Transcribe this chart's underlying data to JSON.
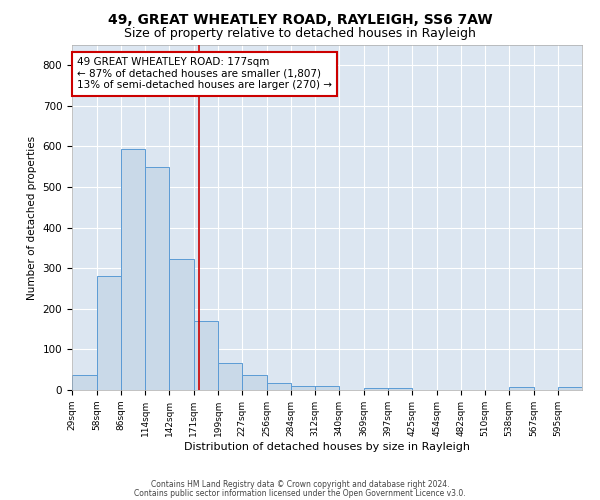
{
  "title1": "49, GREAT WHEATLEY ROAD, RAYLEIGH, SS6 7AW",
  "title2": "Size of property relative to detached houses in Rayleigh",
  "xlabel": "Distribution of detached houses by size in Rayleigh",
  "ylabel": "Number of detached properties",
  "bin_labels": [
    "29sqm",
    "58sqm",
    "86sqm",
    "114sqm",
    "142sqm",
    "171sqm",
    "199sqm",
    "227sqm",
    "256sqm",
    "284sqm",
    "312sqm",
    "340sqm",
    "369sqm",
    "397sqm",
    "425sqm",
    "454sqm",
    "482sqm",
    "510sqm",
    "538sqm",
    "567sqm",
    "595sqm"
  ],
  "bin_edges": [
    29,
    58,
    86,
    114,
    142,
    171,
    199,
    227,
    256,
    284,
    312,
    340,
    369,
    397,
    425,
    454,
    482,
    510,
    538,
    567,
    595
  ],
  "bar_heights": [
    37,
    280,
    595,
    550,
    322,
    170,
    67,
    37,
    18,
    10,
    10,
    0,
    5,
    5,
    0,
    0,
    0,
    0,
    7,
    0,
    7
  ],
  "bar_color": "#c9d9e8",
  "bar_edge_color": "#5b9bd5",
  "property_line_x": 177,
  "property_line_color": "#cc0000",
  "annotation_text": "49 GREAT WHEATLEY ROAD: 177sqm\n← 87% of detached houses are smaller (1,807)\n13% of semi-detached houses are larger (270) →",
  "annotation_box_color": "#ffffff",
  "annotation_box_edge": "#cc0000",
  "ylim": [
    0,
    850
  ],
  "yticks": [
    0,
    100,
    200,
    300,
    400,
    500,
    600,
    700,
    800
  ],
  "background_color": "#dce6f1",
  "footer_line1": "Contains HM Land Registry data © Crown copyright and database right 2024.",
  "footer_line2": "Contains public sector information licensed under the Open Government Licence v3.0.",
  "title1_fontsize": 10,
  "title2_fontsize": 9,
  "annotation_fontsize": 7.5
}
